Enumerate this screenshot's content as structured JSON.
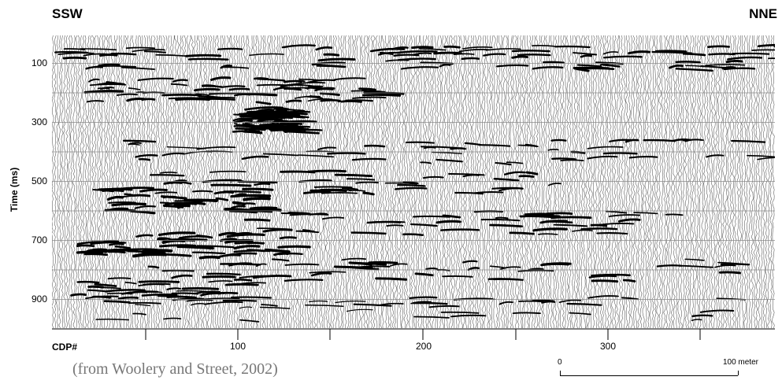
{
  "header": {
    "left_direction": "SSW",
    "right_direction": "NNE"
  },
  "axes": {
    "y_label": "Time (ms)",
    "y_ticks": [
      "100",
      "300",
      "500",
      "700",
      "900"
    ],
    "x_title": "CDP#",
    "x_ticks": [
      "100",
      "200",
      "300"
    ]
  },
  "citation": "(from Woolery and Street, 2002)",
  "scale_bar": {
    "start_label": "0",
    "end_label": "100 meter"
  },
  "colors": {
    "trace": "#000000",
    "background": "#ffffff",
    "gridline": "#8a8a8a",
    "citation": "#777777"
  }
}
